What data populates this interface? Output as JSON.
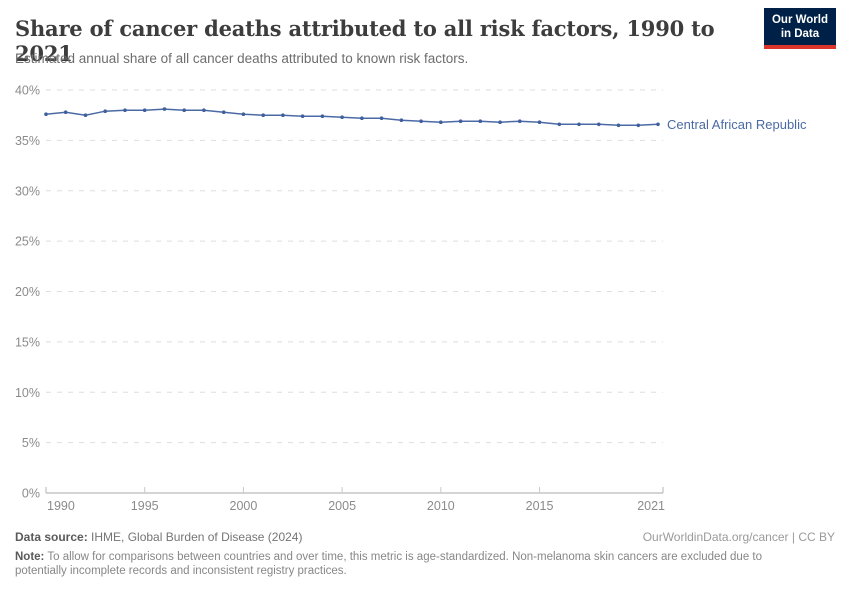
{
  "header": {
    "title": "Share of cancer deaths attributed to all risk factors, 1990 to 2021",
    "subtitle": "Estimated annual share of all cancer deaths attributed to known risk factors.",
    "logo": {
      "line1": "Our World",
      "line2": "in Data",
      "bg_color": "#002147",
      "accent_color": "#dc352b"
    }
  },
  "chart_data": {
    "type": "line",
    "title": "Share of cancer deaths attributed to all risk factors, 1990 to 2021",
    "subtitle": "Estimated annual share of all cancer deaths attributed to known risk factors.",
    "unit": "%",
    "grid": "horizontal-dashed",
    "legend_position": "end-of-line-label",
    "ylim": [
      0,
      40
    ],
    "ytick_values": [
      0,
      5,
      10,
      15,
      20,
      25,
      30,
      35,
      40
    ],
    "ytick_labels": [
      "0%",
      "5%",
      "10%",
      "15%",
      "20%",
      "25%",
      "30%",
      "35%",
      "40%"
    ],
    "xtick_values": [
      1990,
      1995,
      2000,
      2005,
      2010,
      2015,
      2021
    ],
    "x": [
      1990,
      1991,
      1992,
      1993,
      1994,
      1995,
      1996,
      1997,
      1998,
      1999,
      2000,
      2001,
      2002,
      2003,
      2004,
      2005,
      2006,
      2007,
      2008,
      2009,
      2010,
      2011,
      2012,
      2013,
      2014,
      2015,
      2016,
      2017,
      2018,
      2019,
      2020,
      2021
    ],
    "series": [
      {
        "name": "Central African Republic",
        "color": "#4b6aa5",
        "point_color": "#3f5f9d",
        "values": [
          37.6,
          37.8,
          37.5,
          37.9,
          38.0,
          38.0,
          38.1,
          38.0,
          38.0,
          37.8,
          37.6,
          37.5,
          37.5,
          37.4,
          37.4,
          37.3,
          37.2,
          37.2,
          37.0,
          36.9,
          36.8,
          36.9,
          36.9,
          36.8,
          36.9,
          36.8,
          36.6,
          36.6,
          36.6,
          36.5,
          36.5,
          36.6
        ]
      }
    ]
  },
  "footer": {
    "datasource_label": "Data source:",
    "datasource_text": " IHME, Global Burden of Disease (2024)",
    "link": "OurWorldinData.org/cancer | CC BY",
    "note_label": "Note:",
    "note_text": " To allow for comparisons between countries and over time, this metric is age-standardized. Non-melanoma skin cancers are excluded due to potentially incomplete records and inconsistent registry practices."
  }
}
